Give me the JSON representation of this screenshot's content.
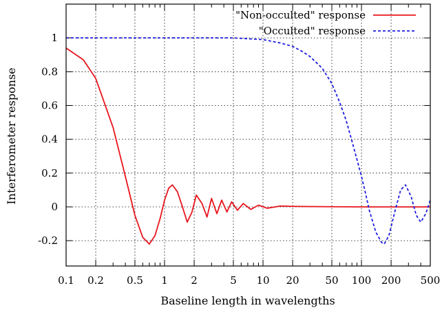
{
  "chart_data": {
    "type": "line",
    "title": "",
    "xlabel": "Baseline length in wavelengths",
    "ylabel": "Interferometer response",
    "xscale": "log",
    "xlim": [
      0.1,
      500
    ],
    "ylim": [
      -0.35,
      1.2
    ],
    "grid": true,
    "legend_position": "top-right",
    "x_ticks": [
      {
        "value": 0.1,
        "label": "0.1"
      },
      {
        "value": 0.2,
        "label": "0.2"
      },
      {
        "value": 0.5,
        "label": "0.5"
      },
      {
        "value": 1,
        "label": "1"
      },
      {
        "value": 2,
        "label": "2"
      },
      {
        "value": 5,
        "label": "5"
      },
      {
        "value": 10,
        "label": "10"
      },
      {
        "value": 20,
        "label": "20"
      },
      {
        "value": 50,
        "label": "50"
      },
      {
        "value": 100,
        "label": "100"
      },
      {
        "value": 200,
        "label": "200"
      },
      {
        "value": 500,
        "label": "500"
      }
    ],
    "y_ticks": [
      {
        "value": 1,
        "label": "1"
      },
      {
        "value": 0.8,
        "label": "0.8"
      },
      {
        "value": 0.6,
        "label": "0.6"
      },
      {
        "value": 0.4,
        "label": "0.4"
      },
      {
        "value": 0.2,
        "label": "0.2"
      },
      {
        "value": 0,
        "label": "0"
      },
      {
        "value": -0.2,
        "label": "-0.2"
      }
    ],
    "series": [
      {
        "name": "\"Non-occulted\" response",
        "color": "#e8141c",
        "style": "solid",
        "x": [
          0.1,
          0.15,
          0.2,
          0.3,
          0.4,
          0.5,
          0.6,
          0.7,
          0.8,
          0.9,
          1.0,
          1.1,
          1.2,
          1.35,
          1.5,
          1.7,
          1.9,
          2.1,
          2.4,
          2.7,
          3.0,
          3.4,
          3.8,
          4.3,
          4.8,
          5.5,
          6.3,
          7.5,
          9.0,
          11,
          15,
          20,
          30,
          50,
          100,
          200,
          500
        ],
        "y": [
          0.94,
          0.87,
          0.76,
          0.47,
          0.18,
          -0.05,
          -0.18,
          -0.22,
          -0.17,
          -0.07,
          0.04,
          0.11,
          0.13,
          0.09,
          0.01,
          -0.09,
          -0.03,
          0.07,
          0.02,
          -0.06,
          0.05,
          -0.04,
          0.04,
          -0.03,
          0.03,
          -0.02,
          0.02,
          -0.015,
          0.01,
          -0.008,
          0.005,
          0.003,
          0.002,
          0.001,
          0.0,
          0.0,
          0.0
        ]
      },
      {
        "name": "\"Occulted\" response",
        "color": "#1c1ce0",
        "style": "dashed",
        "x": [
          0.1,
          0.2,
          0.5,
          1,
          2,
          5,
          10,
          15,
          20,
          25,
          30,
          40,
          50,
          60,
          70,
          80,
          90,
          100,
          110,
          120,
          140,
          160,
          170,
          190,
          220,
          250,
          280,
          320,
          360,
          400,
          450,
          500
        ],
        "y": [
          1.0,
          1.0,
          1.0,
          1.0,
          1.0,
          1.0,
          0.99,
          0.97,
          0.95,
          0.92,
          0.89,
          0.82,
          0.73,
          0.62,
          0.51,
          0.39,
          0.28,
          0.18,
          0.08,
          -0.02,
          -0.15,
          -0.21,
          -0.22,
          -0.17,
          -0.02,
          0.1,
          0.13,
          0.06,
          -0.05,
          -0.09,
          -0.04,
          0.04
        ]
      }
    ]
  }
}
